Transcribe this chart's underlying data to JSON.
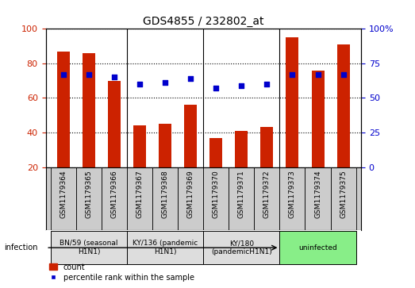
{
  "title": "GDS4855 / 232802_at",
  "samples": [
    "GSM1179364",
    "GSM1179365",
    "GSM1179366",
    "GSM1179367",
    "GSM1179368",
    "GSM1179369",
    "GSM1179370",
    "GSM1179371",
    "GSM1179372",
    "GSM1179373",
    "GSM1179374",
    "GSM1179375"
  ],
  "counts": [
    87,
    86,
    70,
    44,
    45,
    56,
    37,
    41,
    43,
    95,
    76,
    91
  ],
  "percentiles": [
    67,
    67,
    65,
    60,
    61,
    64,
    57,
    59,
    60,
    67,
    67,
    67
  ],
  "ylim_left": [
    20,
    100
  ],
  "ylim_right": [
    0,
    100
  ],
  "yticks_left": [
    20,
    40,
    60,
    80,
    100
  ],
  "yticks_right": [
    0,
    25,
    50,
    75,
    100
  ],
  "yticklabels_right": [
    "0",
    "25",
    "50",
    "75",
    "100%"
  ],
  "bar_color": "#cc2200",
  "dot_color": "#0000cc",
  "groups": [
    {
      "label": "BN/59 (seasonal\nH1N1)",
      "start": 0,
      "end": 3,
      "color": "#dddddd"
    },
    {
      "label": "KY/136 (pandemic\nH1N1)",
      "start": 3,
      "end": 6,
      "color": "#dddddd"
    },
    {
      "label": "KY/180\n(pandemicH1N1)",
      "start": 6,
      "end": 9,
      "color": "#dddddd"
    },
    {
      "label": "uninfected",
      "start": 9,
      "end": 12,
      "color": "#88ee88"
    }
  ],
  "legend_count_label": "count",
  "legend_pct_label": "percentile rank within the sample",
  "infection_label": "infection",
  "bg_color": "#ffffff",
  "sample_bg_color": "#cccccc",
  "group_boundaries": [
    3,
    6,
    9
  ]
}
